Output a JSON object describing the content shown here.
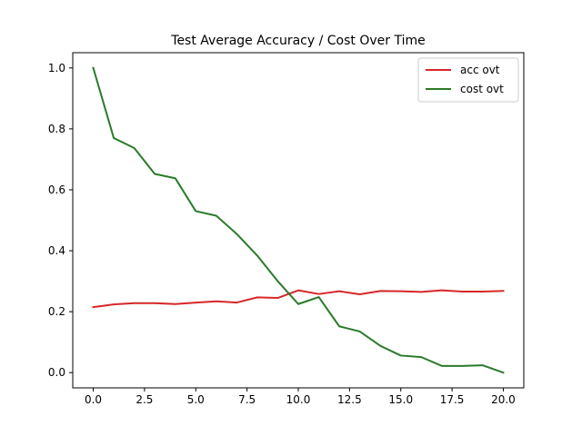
{
  "chart_data": {
    "type": "line",
    "title": "Test Average Accuracy / Cost Over Time",
    "xlabel": "",
    "ylabel": "",
    "xlim": [
      -1,
      21
    ],
    "ylim": [
      -0.05,
      1.05
    ],
    "x_ticks": [
      0.0,
      2.5,
      5.0,
      7.5,
      10.0,
      12.5,
      15.0,
      17.5,
      20.0
    ],
    "x_tick_labels": [
      "0.0",
      "2.5",
      "5.0",
      "7.5",
      "10.0",
      "12.5",
      "15.0",
      "17.5",
      "20.0"
    ],
    "y_ticks": [
      0.0,
      0.2,
      0.4,
      0.6,
      0.8,
      1.0
    ],
    "y_tick_labels": [
      "0.0",
      "0.2",
      "0.4",
      "0.6",
      "0.8",
      "1.0"
    ],
    "grid": false,
    "legend_position": "top-right",
    "x": [
      0,
      1,
      2,
      3,
      4,
      5,
      6,
      7,
      8,
      9,
      10,
      11,
      12,
      13,
      14,
      15,
      16,
      17,
      18,
      19,
      20
    ],
    "series": [
      {
        "name": "acc ovt",
        "color": "#d62728",
        "values": [
          0.215,
          0.224,
          0.228,
          0.228,
          0.225,
          0.23,
          0.234,
          0.23,
          0.247,
          0.245,
          0.27,
          0.258,
          0.267,
          0.257,
          0.268,
          0.267,
          0.265,
          0.27,
          0.266,
          0.266,
          0.268
        ]
      },
      {
        "name": "cost ovt",
        "color": "#2a7a2a",
        "values": [
          1.0,
          0.77,
          0.737,
          0.652,
          0.638,
          0.53,
          0.515,
          0.455,
          0.384,
          0.3,
          0.225,
          0.248,
          0.152,
          0.135,
          0.088,
          0.056,
          0.051,
          0.022,
          0.022,
          0.024,
          0.0
        ]
      }
    ]
  }
}
